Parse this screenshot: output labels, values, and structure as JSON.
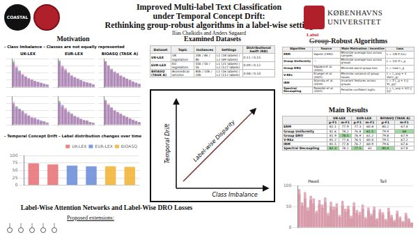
{
  "header": {
    "title_lines": [
      "Improved Multi-label Text Classification",
      "under Temporal Concept Drift:",
      "Rethinking group-robust algorithms in a label-wise setting"
    ],
    "authors": "Ilias Chalkidis and Anders Søgaard",
    "logo_text": "COASTAL",
    "university_lines": [
      "KØBENHAVNS",
      "UNIVERSITET"
    ]
  },
  "motivation": {
    "title": "Motivation",
    "bullets": [
      "- Class Imbalance – Classes are not equally represented",
      "- Temporal Concept Drift – Label distribution changes over time"
    ]
  },
  "chart_data": [
    {
      "type": "bar",
      "title": "UK-LEX",
      "categories": [
        null,
        null,
        null,
        null,
        null,
        null,
        null,
        null,
        null,
        null,
        null,
        null
      ],
      "series": [
        {
          "color": "#8e6bbf",
          "values": [
            14,
            11,
            9,
            7,
            6,
            5,
            4,
            3.5,
            3,
            2.5,
            2,
            1.5
          ]
        },
        {
          "color": "#f28cb1",
          "values": [
            13,
            12,
            8,
            7.5,
            5.5,
            5,
            4.5,
            3,
            3,
            2,
            2,
            1
          ]
        },
        {
          "color": "#7fbf7f",
          "values": [
            15,
            10,
            9.5,
            6.5,
            6,
            4,
            4,
            3.5,
            2.5,
            2.5,
            1.5,
            1.5
          ]
        }
      ],
      "ylim": [
        0,
        16
      ],
      "yticks": [
        0,
        4,
        8,
        12,
        16
      ],
      "grid": true,
      "tick_labels": false
    },
    {
      "type": "bar",
      "title": "EUR-LEX",
      "categories": [
        null,
        null,
        null,
        null,
        null,
        null,
        null,
        null,
        null,
        null,
        null,
        null
      ],
      "series": [
        {
          "color": "#8e6bbf",
          "values": [
            18,
            15,
            12,
            10,
            8,
            7,
            6,
            5,
            4,
            3.5,
            3,
            2
          ]
        },
        {
          "color": "#f28cb1",
          "values": [
            17,
            14,
            13,
            9,
            8.5,
            6,
            6,
            4.5,
            4,
            3,
            2.5,
            2
          ]
        },
        {
          "color": "#7fbf7f",
          "values": [
            19,
            13,
            11,
            10.5,
            7,
            7,
            5,
            5,
            3.5,
            3,
            2.5,
            1.5
          ]
        }
      ],
      "ylim": [
        0,
        20
      ],
      "yticks": [
        0,
        5,
        10,
        15,
        20
      ],
      "grid": true,
      "tick_labels": false
    },
    {
      "type": "bar",
      "title": "BIOASQ (TASK A)",
      "categories": [
        null,
        null,
        null,
        null,
        null,
        null,
        null,
        null,
        null,
        null,
        null,
        null
      ],
      "series": [
        {
          "color": "#8e6bbf",
          "values": [
            90,
            75,
            62,
            55,
            48,
            40,
            35,
            30,
            25,
            20,
            16,
            12
          ]
        },
        {
          "color": "#f28cb1",
          "values": [
            88,
            78,
            60,
            52,
            50,
            42,
            33,
            28,
            26,
            18,
            15,
            10
          ]
        },
        {
          "color": "#7fbf7f",
          "values": [
            92,
            72,
            65,
            50,
            45,
            38,
            36,
            29,
            22,
            19,
            14,
            11
          ]
        }
      ],
      "ylim": [
        0,
        100
      ],
      "yticks": [
        0,
        25,
        50,
        75,
        100
      ],
      "grid": true,
      "tick_labels": false
    },
    {
      "type": "bar",
      "categories": [
        null,
        null,
        null,
        null,
        null,
        null,
        null,
        null,
        null,
        null,
        null,
        null
      ],
      "series": [
        {
          "color": "#8e6bbf",
          "values": [
            12,
            10,
            9,
            8,
            6.5,
            5,
            4,
            4,
            3,
            2.5,
            2,
            1
          ]
        },
        {
          "color": "#f28cb1",
          "values": [
            13,
            9,
            8.5,
            7,
            6,
            5.5,
            4.5,
            3.5,
            3,
            2,
            1.5,
            1
          ]
        },
        {
          "color": "#7fbf7f",
          "values": [
            11,
            10.5,
            9,
            7.5,
            5,
            5,
            3.5,
            3,
            2.5,
            2,
            2,
            1.5
          ]
        }
      ],
      "ylim": [
        0,
        16
      ],
      "yticks": [
        0,
        4,
        8,
        12,
        16
      ],
      "grid": true,
      "tick_labels": false
    },
    {
      "type": "bar",
      "categories": [
        null,
        null,
        null,
        null,
        null,
        null,
        null,
        null,
        null,
        null,
        null,
        null
      ],
      "series": [
        {
          "color": "#8e6bbf",
          "values": [
            16,
            14,
            11,
            9,
            8,
            6,
            5.5,
            4,
            3.5,
            3,
            2,
            1.5
          ]
        },
        {
          "color": "#f28cb1",
          "values": [
            15,
            12,
            12,
            8,
            7,
            6.5,
            5,
            4.5,
            3,
            2.5,
            2,
            1
          ]
        },
        {
          "color": "#7fbf7f",
          "values": [
            17,
            13,
            10,
            9.5,
            7.5,
            6,
            4.5,
            4,
            3,
            3,
            1.5,
            1.5
          ]
        }
      ],
      "ylim": [
        0,
        20
      ],
      "yticks": [
        0,
        5,
        10,
        15,
        20
      ],
      "grid": true,
      "tick_labels": false
    },
    {
      "type": "bar",
      "categories": [
        null,
        null,
        null,
        null,
        null,
        null,
        null,
        null,
        null,
        null,
        null,
        null
      ],
      "series": [
        {
          "color": "#8e6bbf",
          "values": [
            85,
            70,
            60,
            50,
            45,
            38,
            32,
            28,
            22,
            18,
            14,
            10
          ]
        },
        {
          "color": "#f28cb1",
          "values": [
            82,
            74,
            58,
            52,
            42,
            40,
            30,
            26,
            24,
            16,
            13,
            9
          ]
        },
        {
          "color": "#7fbf7f",
          "values": [
            88,
            68,
            62,
            48,
            44,
            36,
            33,
            27,
            21,
            17,
            12,
            8
          ]
        }
      ],
      "ylim": [
        0,
        100
      ],
      "yticks": [
        0,
        25,
        50,
        75,
        100
      ],
      "grid": true,
      "tick_labels": false
    },
    {
      "type": "bar",
      "categories": [
        null,
        null,
        null,
        null,
        null,
        null
      ],
      "series": [
        {
          "name": "UK-LEX",
          "color": "#e8767a",
          "values": [
            74,
            70,
            null,
            null,
            null,
            null
          ]
        },
        {
          "name": "EUR-LEX",
          "color": "#6f8fd8",
          "values": [
            null,
            null,
            66,
            64,
            null,
            null
          ]
        },
        {
          "name": "BIOASQ",
          "color": "#f2b53a",
          "values": [
            null,
            null,
            null,
            null,
            64,
            62
          ]
        }
      ],
      "stacked": true,
      "ylim": [
        0,
        100
      ],
      "yticks": [
        0,
        25,
        50,
        75,
        100
      ],
      "grid": true,
      "legend": "top-right"
    },
    {
      "type": "bar",
      "annotations": [
        "Head",
        "Tail"
      ],
      "categories": [
        null,
        null,
        null,
        null,
        null,
        null,
        null,
        null,
        null,
        null,
        null,
        null,
        null,
        null,
        null,
        null,
        null,
        null,
        null,
        null,
        null,
        null,
        null,
        null,
        null,
        null,
        null,
        null,
        null,
        null,
        null,
        null,
        null,
        null,
        null,
        null,
        null,
        null,
        null,
        null
      ],
      "series": [
        {
          "color": "#e0a3b5",
          "values": [
            92,
            60,
            85,
            48,
            76,
            70,
            40,
            66,
            55,
            72,
            35,
            62,
            50,
            58,
            30,
            64,
            45,
            52,
            28,
            60,
            42,
            38,
            55,
            25,
            48,
            33,
            50,
            22,
            44,
            36,
            20,
            47,
            30,
            18,
            40,
            26,
            15,
            35,
            22,
            12
          ]
        },
        {
          "color": "#a0524f",
          "values": [
            80,
            52,
            70,
            40,
            66,
            58,
            34,
            55,
            47,
            60,
            28,
            50,
            42,
            48,
            25,
            52,
            38,
            44,
            22,
            50,
            35,
            30,
            45,
            20,
            40,
            27,
            42,
            18,
            36,
            30,
            16,
            38,
            24,
            14,
            33,
            21,
            12,
            28,
            18,
            10
          ]
        }
      ],
      "ylim": [
        0,
        100
      ],
      "yticks": [
        0,
        50,
        100
      ],
      "grid": true,
      "tick_labels": "y"
    }
  ],
  "examined_datasets": {
    "title": "Examined Datasets",
    "header": [
      "Dataset",
      "Topic",
      "Instances",
      "Settings",
      "Distributional Swift (RD)"
    ],
    "rows": [
      [
        "UK-LEX",
        "UK legislation",
        "20k / 8k / 8k",
        "L1 (18 labels) / L2 (69 labels)",
        "0.11 / 0.15"
      ],
      [
        "EUR-LEX",
        "EU legislation",
        "55k / 5k / 5k",
        "L1 (21 labels) / L2 (127 labels)",
        "0.09 / 0.12"
      ],
      [
        "BIOASQ (TASK A)",
        "Biomedical articles",
        "80k / 10k / 10k",
        "L1 (16 labels) / L2 (112 labels)",
        "0.08 / 0.10"
      ]
    ]
  },
  "diagram": {
    "y_axis": "Temporal Drift",
    "x_axis": "Class Imbalance",
    "diagonal": "Label-wise Disparity"
  },
  "algorithms": {
    "title_inserted": "Label",
    "title_struck": "Group",
    "title_rest": "-Robust Algorithms",
    "header": [
      "Algorithm",
      "Source",
      "Main Motivation / Incentive",
      "Loss"
    ],
    "rows": [
      [
        "ERM",
        "Vapnik (1992)",
        "Minimize average loss across samples",
        "L = 1/N Σ ℓ(xᵢ)"
      ],
      [
        "Group Uniformity",
        "—",
        "Minimize average loss across groups",
        "L = 1/G Σ L_g"
      ],
      [
        "Group DRO",
        "Sagawa et al. (2020)",
        "Minimize worst-group loss",
        "L = max L_g"
      ],
      [
        "V-REx",
        "Krueger et al. (2021)",
        "Minimize variance of group losses",
        "L = L_avg + λ Var(L_g)"
      ],
      [
        "IRM",
        "Arjovsky et al. (2019)",
        "Invariant features across groups",
        "L = Σ L_g + λ ||∇L_g||²"
      ],
      [
        "Spectral Decoupling",
        "Pezeshki et al. (2021)",
        "Penalize confident logits",
        "L = L_avg + λ/2 ||ŷ||²"
      ]
    ]
  },
  "main_results": {
    "title": "Main Results",
    "datasets": [
      "UK-LEX",
      "EUR-LEX",
      "BIOASQ (TASK A)"
    ],
    "metrics": [
      "μ-F1",
      "m-F1"
    ],
    "rows": [
      {
        "method": "ERM",
        "values": [
          82.1,
          77.9,
          77.3,
          60.8,
          80.2,
          67.4
        ]
      },
      {
        "method": "Group Uniformity",
        "values": [
          81.6,
          78.2,
          76.8,
          61.5,
          79.9,
          68.0
        ]
      },
      {
        "method": "Group DRO",
        "values": [
          81.9,
          78.5,
          76.9,
          61.2,
          79.8,
          67.9
        ]
      },
      {
        "method": "V-REx",
        "values": [
          81.2,
          77.6,
          76.5,
          60.4,
          79.5,
          67.2
        ]
      },
      {
        "method": "IRM",
        "values": [
          81.5,
          77.8,
          76.7,
          60.9,
          79.6,
          67.6
        ]
      },
      {
        "method": "Spectral Decoupling",
        "values": [
          82.3,
          78.1,
          77.5,
          61.0,
          80.4,
          67.8
        ]
      }
    ]
  },
  "bottom_section": {
    "title": "Label-Wise Attention Networks and Label-Wise DRO Losses",
    "subtitle": "Proposed extensions:"
  }
}
